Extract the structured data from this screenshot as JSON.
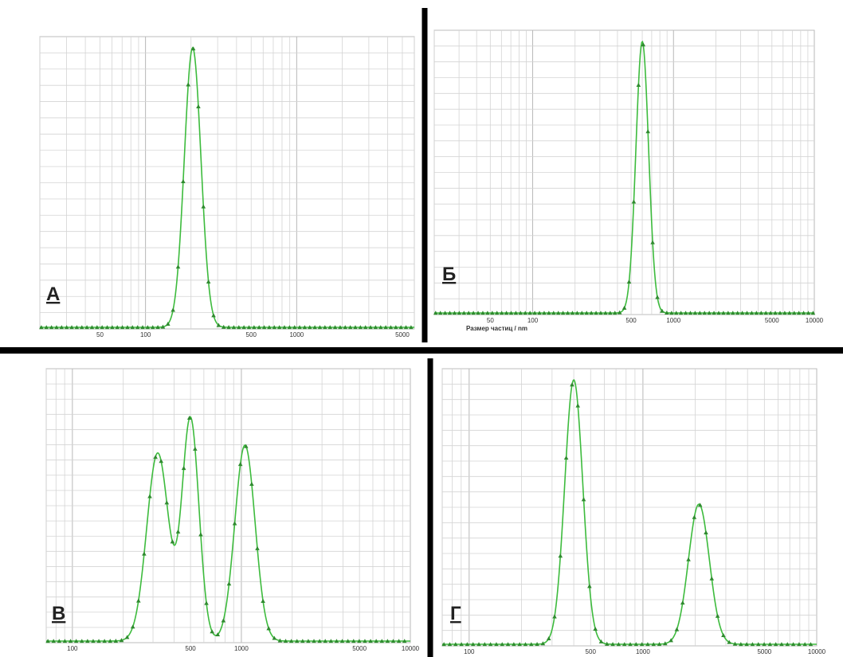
{
  "chart_data": [
    {
      "type": "line",
      "panel_label": "А",
      "xscale": "log",
      "xlim": [
        20,
        6000
      ],
      "xticks": [
        "50",
        "100",
        "500",
        "1000",
        "5000"
      ],
      "xticks_values": [
        50,
        100,
        500,
        1000,
        5000
      ],
      "xlabel": "",
      "series": [
        {
          "peaks": [
            {
              "center": 205,
              "height": 1.0,
              "width": 0.055
            }
          ]
        }
      ]
    },
    {
      "type": "line",
      "panel_label": "Б",
      "xscale": "log",
      "xlim": [
        20,
        10000
      ],
      "xticks": [
        "50",
        "100",
        "500",
        "1000",
        "5000",
        "10000"
      ],
      "xticks_values": [
        50,
        100,
        500,
        1000,
        5000,
        10000
      ],
      "xlabel": "Размер частиц / nm",
      "series": [
        {
          "peaks": [
            {
              "center": 600,
              "height": 1.0,
              "width": 0.045
            }
          ]
        }
      ]
    },
    {
      "type": "line",
      "panel_label": "В",
      "xscale": "log",
      "xlim": [
        70,
        10000
      ],
      "xticks": [
        "100",
        "500",
        "1000",
        "5000",
        "10000"
      ],
      "xticks_values": [
        100,
        500,
        1000,
        5000,
        10000
      ],
      "xlabel": "",
      "series": [
        {
          "peaks": [
            {
              "center": 320,
              "height": 0.72,
              "width": 0.065
            },
            {
              "center": 500,
              "height": 0.85,
              "width": 0.05
            },
            {
              "center": 1050,
              "height": 0.75,
              "width": 0.06
            }
          ]
        }
      ]
    },
    {
      "type": "line",
      "panel_label": "Г",
      "xscale": "log",
      "xlim": [
        70,
        10000
      ],
      "xticks": [
        "100",
        "500",
        "1000",
        "5000",
        "10000"
      ],
      "xticks_values": [
        100,
        500,
        1000,
        5000,
        10000
      ],
      "xlabel": "",
      "series": [
        {
          "peaks": [
            {
              "center": 400,
              "height": 1.0,
              "width": 0.052
            },
            {
              "center": 2100,
              "height": 0.53,
              "width": 0.06
            }
          ]
        }
      ]
    }
  ],
  "colors": {
    "line": "#3dbb3d",
    "marker": "#2f8a2f",
    "grid": "#d4d4d4",
    "divider": "#000000",
    "label": "#222222"
  }
}
